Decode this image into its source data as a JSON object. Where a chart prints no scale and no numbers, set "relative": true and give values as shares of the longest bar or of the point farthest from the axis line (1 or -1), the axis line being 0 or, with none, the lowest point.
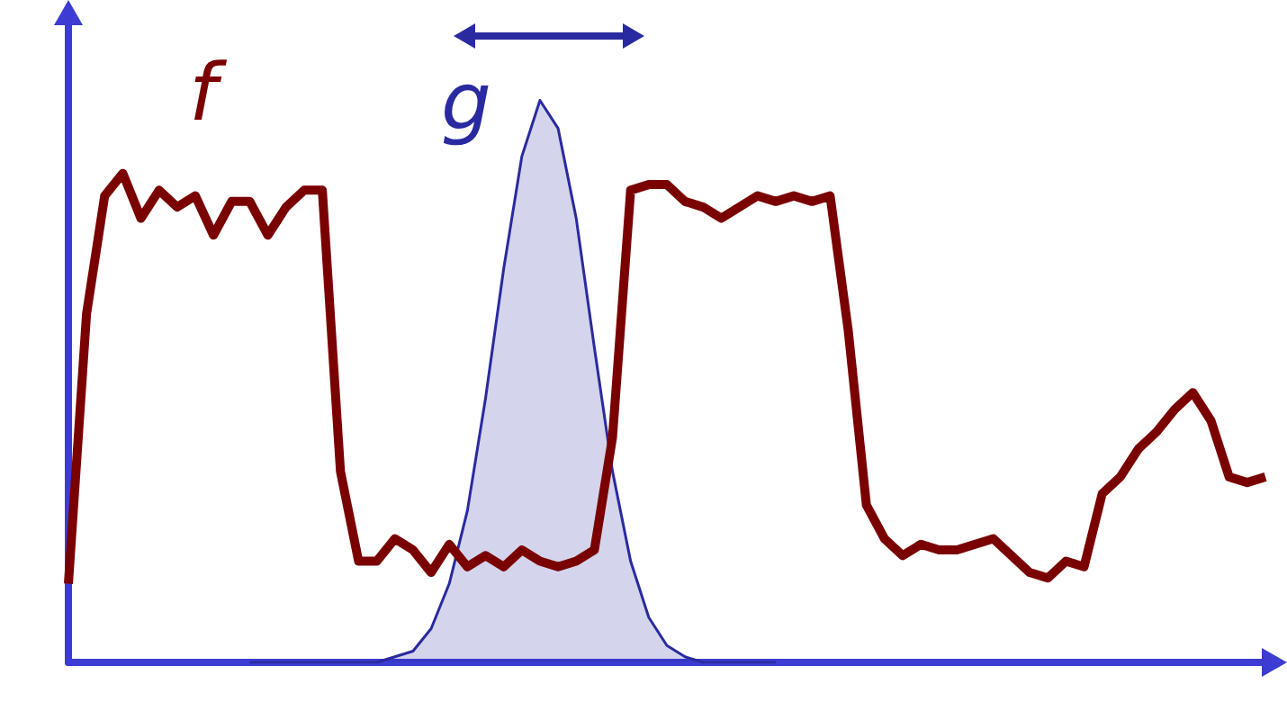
{
  "chart_data": {
    "type": "line",
    "relative": true,
    "marker": "none",
    "categories": [
      null,
      null,
      null,
      null,
      null,
      null,
      null,
      null,
      null,
      null,
      null,
      null,
      null,
      null,
      null,
      null,
      null,
      null,
      null,
      null,
      null,
      null,
      null,
      null,
      null,
      null,
      null,
      null,
      null,
      null,
      null,
      null,
      null,
      null,
      null,
      null,
      null,
      null,
      null,
      null,
      null,
      null,
      null,
      null,
      null,
      null,
      null,
      null,
      null,
      null,
      null,
      null,
      null,
      null,
      null,
      null,
      null,
      null,
      null,
      null,
      null,
      null,
      null,
      null,
      null,
      null,
      null
    ],
    "series": [
      {
        "name": "f",
        "color": "#7a0000",
        "values": [
          0.14,
          0.62,
          0.83,
          0.87,
          0.79,
          0.84,
          0.81,
          0.83,
          0.76,
          0.82,
          0.82,
          0.76,
          0.81,
          0.84,
          0.84,
          0.34,
          0.18,
          0.18,
          0.22,
          0.2,
          0.16,
          0.21,
          0.17,
          0.19,
          0.17,
          0.2,
          0.18,
          0.17,
          0.18,
          0.2,
          0.4,
          0.84,
          0.85,
          0.85,
          0.82,
          0.81,
          0.79,
          0.81,
          0.83,
          0.82,
          0.83,
          0.82,
          0.83,
          0.59,
          0.28,
          0.22,
          0.19,
          0.21,
          0.2,
          0.2,
          0.21,
          0.22,
          0.19,
          0.16,
          0.15,
          0.18,
          0.17,
          0.3,
          0.33,
          0.38,
          0.41,
          0.45,
          0.48,
          0.43,
          0.33,
          0.32,
          0.33
        ]
      },
      {
        "name": "g",
        "type": "area",
        "color": "#2a2aa0",
        "values": [
          null,
          null,
          null,
          null,
          null,
          null,
          null,
          null,
          null,
          null,
          0,
          0,
          0,
          0,
          0,
          0,
          0,
          0,
          0.01,
          0.02,
          0.06,
          0.14,
          0.27,
          0.47,
          0.7,
          0.9,
          1,
          0.95,
          0.79,
          0.56,
          0.34,
          0.18,
          0.08,
          0.03,
          0.01,
          0,
          0,
          0,
          0,
          0,
          null,
          null,
          null,
          null,
          null,
          null,
          null,
          null,
          null,
          null,
          null,
          null,
          null,
          null,
          null,
          null,
          null,
          null,
          null,
          null,
          null,
          null,
          null,
          null,
          null,
          null,
          null
        ]
      }
    ]
  }
}
